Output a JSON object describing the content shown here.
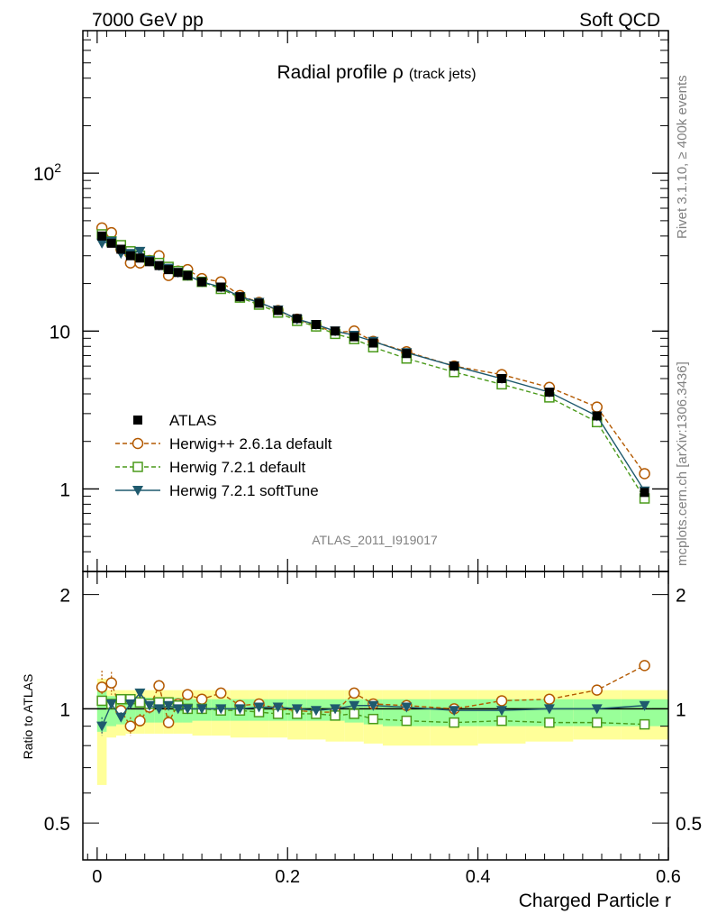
{
  "header": {
    "left": "7000 GeV pp",
    "right": "Soft QCD"
  },
  "side_labels": {
    "top": "Rivet 3.1.10, ≥ 400k events",
    "bottom": "mcplots.cern.ch [arXiv:1306.3436]"
  },
  "chart_data": {
    "type": "line",
    "title": "Radial profile ρ",
    "title_suffix": "(track jets)",
    "analysis_id": "ATLAS_2011_I919017",
    "xlabel": "Charged Particle r",
    "ylabel_ratio": "Ratio to ATLAS",
    "main_scale": "log",
    "xlim": [
      -0.015,
      0.6
    ],
    "main_ylim": [
      0.3,
      800
    ],
    "ratio_ylim": [
      0.4,
      2.3
    ],
    "x_ticks": [
      {
        "v": 0,
        "label": "0"
      },
      {
        "v": 0.2,
        "label": "0.2"
      },
      {
        "v": 0.4,
        "label": "0.4"
      },
      {
        "v": 0.6,
        "label": "0.6"
      }
    ],
    "main_y_ticks": [
      {
        "v": 1,
        "label": "1"
      },
      {
        "v": 10,
        "label": "10"
      },
      {
        "v": 100,
        "label": "10",
        "sup": "2"
      }
    ],
    "ratio_y_ticks": [
      {
        "v": 0.5,
        "label": "0.5"
      },
      {
        "v": 1,
        "label": "1"
      },
      {
        "v": 2,
        "label": "2"
      }
    ],
    "x": [
      0.005,
      0.015,
      0.025,
      0.035,
      0.045,
      0.055,
      0.065,
      0.075,
      0.085,
      0.095,
      0.11,
      0.13,
      0.15,
      0.17,
      0.19,
      0.21,
      0.23,
      0.25,
      0.27,
      0.29,
      0.325,
      0.375,
      0.425,
      0.475,
      0.525,
      0.575
    ],
    "band_edges": [
      0,
      0.01,
      0.02,
      0.03,
      0.04,
      0.05,
      0.06,
      0.07,
      0.08,
      0.09,
      0.1,
      0.12,
      0.14,
      0.16,
      0.18,
      0.2,
      0.22,
      0.24,
      0.26,
      0.28,
      0.3,
      0.35,
      0.4,
      0.45,
      0.5,
      0.55,
      0.6
    ],
    "band_inner": [
      [
        0.87,
        1.15
      ],
      [
        0.9,
        1.08
      ],
      [
        0.91,
        1.07
      ],
      [
        0.92,
        1.07
      ],
      [
        0.92,
        1.07
      ],
      [
        0.92,
        1.07
      ],
      [
        0.92,
        1.07
      ],
      [
        0.92,
        1.07
      ],
      [
        0.92,
        1.07
      ],
      [
        0.92,
        1.07
      ],
      [
        0.93,
        1.06
      ],
      [
        0.93,
        1.06
      ],
      [
        0.93,
        1.06
      ],
      [
        0.93,
        1.06
      ],
      [
        0.93,
        1.06
      ],
      [
        0.93,
        1.06
      ],
      [
        0.93,
        1.06
      ],
      [
        0.93,
        1.06
      ],
      [
        0.92,
        1.06
      ],
      [
        0.91,
        1.06
      ],
      [
        0.9,
        1.06
      ],
      [
        0.9,
        1.06
      ],
      [
        0.9,
        1.06
      ],
      [
        0.9,
        1.06
      ],
      [
        0.9,
        1.06
      ],
      [
        0.9,
        1.06
      ]
    ],
    "band_outer": [
      [
        0.63,
        1.2
      ],
      [
        0.84,
        1.12
      ],
      [
        0.85,
        1.12
      ],
      [
        0.86,
        1.12
      ],
      [
        0.86,
        1.12
      ],
      [
        0.86,
        1.12
      ],
      [
        0.86,
        1.12
      ],
      [
        0.86,
        1.12
      ],
      [
        0.86,
        1.12
      ],
      [
        0.86,
        1.12
      ],
      [
        0.85,
        1.12
      ],
      [
        0.85,
        1.12
      ],
      [
        0.84,
        1.12
      ],
      [
        0.84,
        1.12
      ],
      [
        0.84,
        1.12
      ],
      [
        0.83,
        1.12
      ],
      [
        0.83,
        1.12
      ],
      [
        0.82,
        1.12
      ],
      [
        0.82,
        1.12
      ],
      [
        0.81,
        1.12
      ],
      [
        0.8,
        1.12
      ],
      [
        0.8,
        1.12
      ],
      [
        0.81,
        1.12
      ],
      [
        0.82,
        1.12
      ],
      [
        0.83,
        1.12
      ],
      [
        0.83,
        1.12
      ]
    ],
    "series": [
      {
        "name": "ATLAS",
        "style": "data",
        "color": "#000000",
        "values": [
          40,
          36,
          33,
          30,
          29,
          27.5,
          26,
          24.5,
          23.5,
          22.5,
          20.5,
          19,
          16.5,
          15,
          13.5,
          12,
          11,
          10,
          9.2,
          8.4,
          7.2,
          6,
          5,
          4.1,
          2.9,
          0.95
        ]
      },
      {
        "name": "Herwig++ 2.6.1a default",
        "style": "circle",
        "color": "#b35900",
        "values": [
          45,
          42,
          33,
          27,
          27,
          28,
          30,
          22.5,
          24,
          24.5,
          21.5,
          20.5,
          16.8,
          15.2,
          13.5,
          11.9,
          10.8,
          9.8,
          10,
          8.6,
          7.4,
          6,
          5.3,
          4.4,
          3.3,
          1.25
        ],
        "ratio": [
          1.14,
          1.17,
          0.99,
          0.9,
          0.93,
          1.01,
          1.15,
          0.92,
          1.03,
          1.09,
          1.06,
          1.1,
          1.02,
          1.03,
          1.0,
          0.99,
          0.98,
          0.98,
          1.1,
          1.03,
          1.02,
          1.0,
          1.05,
          1.06,
          1.12,
          1.3
        ],
        "ratio_err": [
          0.12,
          0.08,
          0.05,
          0.05,
          0.04,
          0.04,
          0.04,
          0.04,
          0.03,
          0.03,
          0.03,
          0.03,
          0.02,
          0.02,
          0.02,
          0.02,
          0.02,
          0.02,
          0.03,
          0.02,
          0.02,
          0.02,
          0.02,
          0.02,
          0.02,
          0.04
        ]
      },
      {
        "name": "Herwig 7.2.1 default",
        "style": "square",
        "color": "#4a9a1a",
        "values": [
          41,
          37,
          35,
          32,
          30,
          28,
          27,
          25.5,
          24,
          22.5,
          20.5,
          18.5,
          16.3,
          14.7,
          13.1,
          11.6,
          10.7,
          9.6,
          8.9,
          7.9,
          6.7,
          5.5,
          4.6,
          3.8,
          2.65,
          0.87
        ],
        "ratio": [
          1.05,
          1.03,
          1.06,
          1.06,
          1.04,
          1.03,
          1.04,
          1.04,
          1.02,
          1.0,
          1.0,
          0.99,
          0.99,
          0.98,
          0.97,
          0.97,
          0.97,
          0.96,
          0.97,
          0.94,
          0.93,
          0.92,
          0.93,
          0.92,
          0.92,
          0.91
        ],
        "ratio_err": [
          0.02,
          0.02,
          0.02,
          0.02,
          0.02,
          0.02,
          0.02,
          0.02,
          0.02,
          0.02,
          0.02,
          0.02,
          0.02,
          0.02,
          0.02,
          0.02,
          0.02,
          0.02,
          0.02,
          0.02,
          0.02,
          0.02,
          0.02,
          0.02,
          0.02,
          0.02
        ]
      },
      {
        "name": "Herwig 7.2.1 softTune",
        "style": "triangle",
        "color": "#1f5a6e",
        "values": [
          36,
          37,
          31,
          31,
          32,
          28,
          26,
          25,
          23.5,
          22.5,
          20.5,
          19,
          16.5,
          15.2,
          13.6,
          11.9,
          11,
          10,
          9.4,
          8.6,
          7.3,
          6,
          5,
          4.1,
          2.9,
          0.97
        ],
        "ratio": [
          0.9,
          1.03,
          0.95,
          1.03,
          1.1,
          1.02,
          1.0,
          1.02,
          1.0,
          1.0,
          1.0,
          1.0,
          1.0,
          1.01,
          1.01,
          1.0,
          0.99,
          1.0,
          1.02,
          1.02,
          1.01,
          0.99,
          0.99,
          1.0,
          1.0,
          1.02
        ],
        "ratio_err": [
          0.05,
          0.03,
          0.03,
          0.02,
          0.02,
          0.02,
          0.02,
          0.02,
          0.02,
          0.02,
          0.02,
          0.02,
          0.02,
          0.02,
          0.02,
          0.02,
          0.02,
          0.02,
          0.02,
          0.02,
          0.02,
          0.02,
          0.02,
          0.02,
          0.02,
          0.02
        ]
      }
    ]
  }
}
